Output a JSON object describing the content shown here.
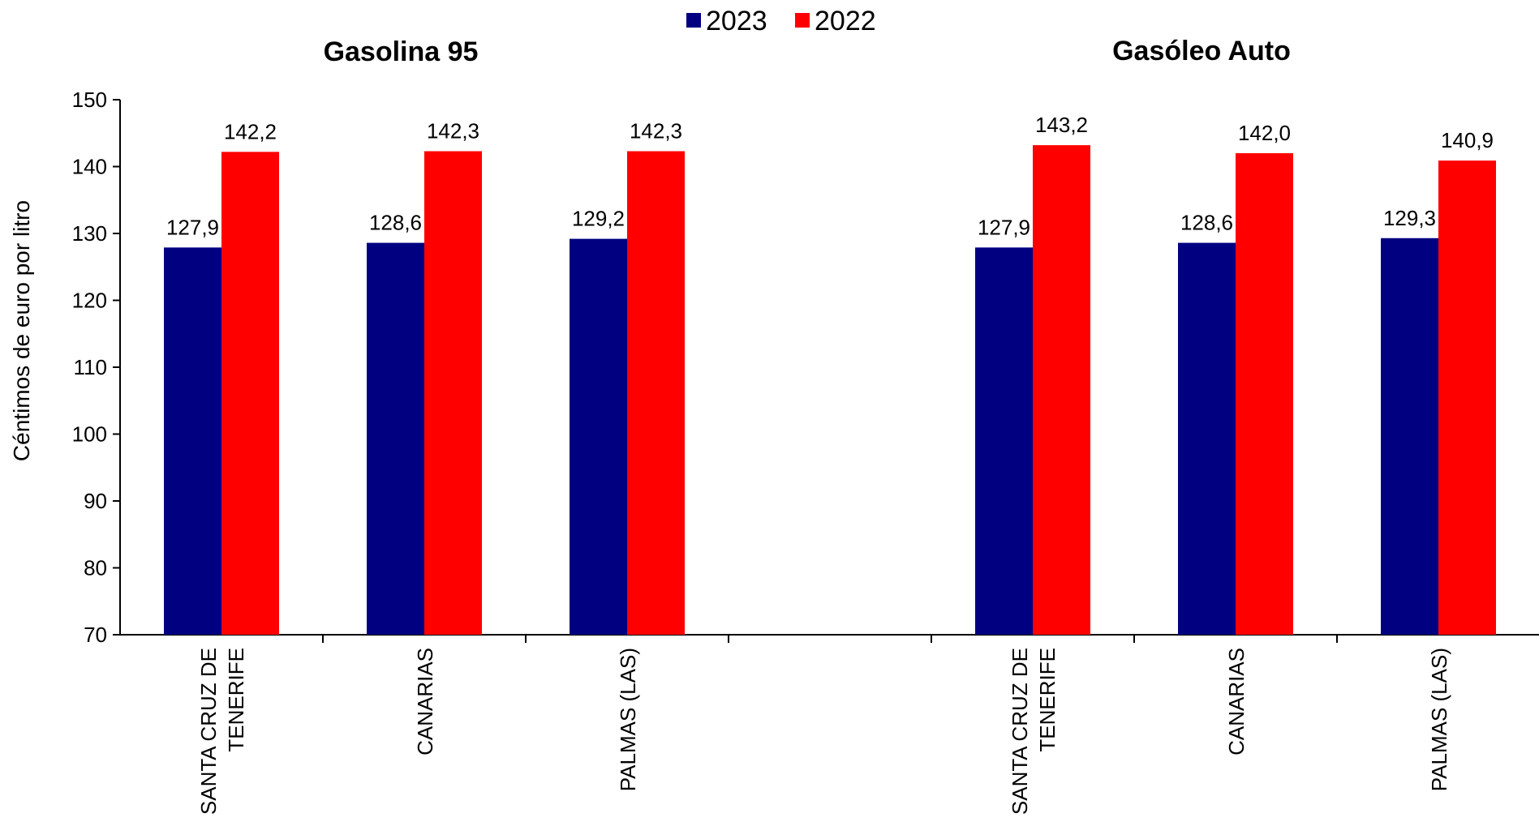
{
  "chart_data": {
    "type": "bar",
    "ylabel": "Céntimos de euro por litro",
    "ylim": [
      70,
      150
    ],
    "yticks": [
      70,
      80,
      90,
      100,
      110,
      120,
      130,
      140,
      150
    ],
    "grid": false,
    "legend": {
      "position": "top-center",
      "entries": [
        "2023",
        "2022"
      ]
    },
    "colors": {
      "2023": "#000080",
      "2022": "#ff0000"
    },
    "groups": [
      {
        "title": "Gasolina 95",
        "categories": [
          [
            "SANTA CRUZ DE",
            "TENERIFE"
          ],
          [
            "CANARIAS"
          ],
          [
            "PALMAS (LAS)"
          ]
        ],
        "series": [
          {
            "name": "2023",
            "values": [
              127.9,
              128.6,
              129.2
            ],
            "labels": [
              "127,9",
              "128,6",
              "129,2"
            ]
          },
          {
            "name": "2022",
            "values": [
              142.2,
              142.3,
              142.3
            ],
            "labels": [
              "142,2",
              "142,3",
              "142,3"
            ]
          }
        ]
      },
      {
        "title": "Gasóleo Auto",
        "categories": [
          [
            "SANTA CRUZ DE",
            "TENERIFE"
          ],
          [
            "CANARIAS"
          ],
          [
            "PALMAS (LAS)"
          ]
        ],
        "series": [
          {
            "name": "2023",
            "values": [
              127.9,
              128.6,
              129.3
            ],
            "labels": [
              "127,9",
              "128,6",
              "129,3"
            ]
          },
          {
            "name": "2022",
            "values": [
              143.2,
              142.0,
              140.9
            ],
            "labels": [
              "143,2",
              "142,0",
              "140,9"
            ]
          }
        ]
      }
    ]
  }
}
